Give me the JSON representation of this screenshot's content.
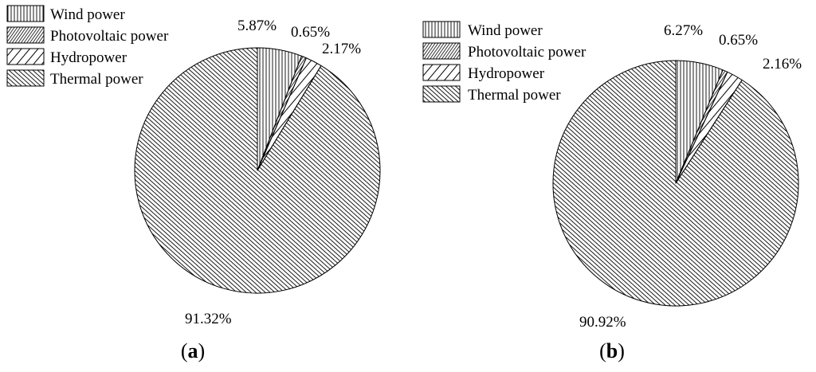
{
  "chart_data": [
    {
      "type": "pie",
      "panel_label": "(a)",
      "categories": [
        "Wind power",
        "Photovoltaic power",
        "Hydropower",
        "Thermal power"
      ],
      "values": [
        5.87,
        0.65,
        2.17,
        91.32
      ],
      "value_labels": [
        "5.87%",
        "0.65%",
        "2.17%",
        "91.32%"
      ],
      "legend_position": "top-left"
    },
    {
      "type": "pie",
      "panel_label": "(b)",
      "categories": [
        "Wind power",
        "Photovoltaic power",
        "Hydropower",
        "Thermal power"
      ],
      "values": [
        6.27,
        0.65,
        2.16,
        90.92
      ],
      "value_labels": [
        "6.27%",
        "0.65%",
        "2.16%",
        "90.92%"
      ],
      "legend_position": "top-left"
    }
  ],
  "colors": {
    "stroke": "#000000",
    "background": "#ffffff"
  },
  "pattern_styles": [
    "vertical-hatch",
    "dense-diagonal-hatch",
    "wide-diagonal-hatch",
    "back-diagonal-hatch"
  ]
}
